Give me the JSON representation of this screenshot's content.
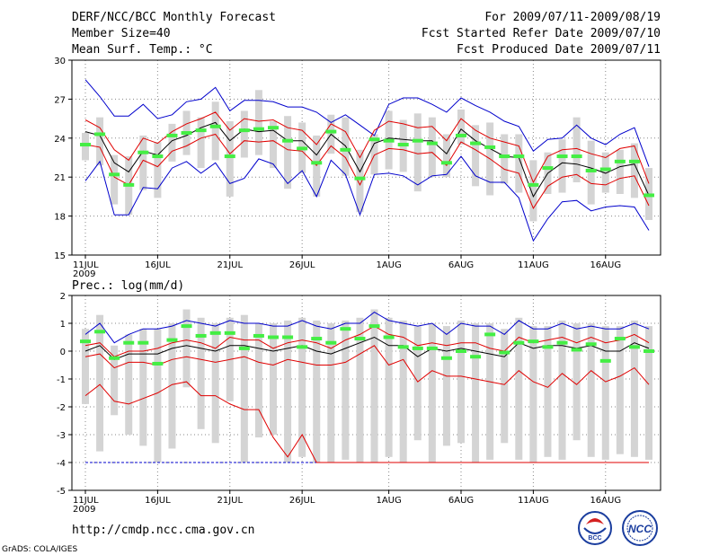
{
  "header": {
    "title": "DERF/NCC/BCC Monthly Forecast",
    "member_size": "Member Size=40",
    "variable1": "Mean Surf. Temp.: °C",
    "period": "For 2009/07/11-2009/08/19",
    "started": "Fcst Started Refer Date 2009/07/10",
    "produced": "Fcst Produced Date 2009/07/11"
  },
  "footer": {
    "url": "http://cmdp.ncc.cma.gov.cn",
    "grads": "GrADS: COLA/IGES",
    "logo_bcc": "BCC",
    "logo_ncc": "NCC"
  },
  "colors": {
    "box": "#d4d4d4",
    "mean": "#000000",
    "spread": "#e00000",
    "extreme": "#0000cc",
    "median": "#44ee44",
    "grid": "#888888"
  },
  "chart_data": [
    {
      "type": "line",
      "title": "Mean Surf. Temp.: °C",
      "xlabel": "",
      "ylabel": "°C",
      "xlim": [
        0,
        39
      ],
      "ylim": [
        15,
        30
      ],
      "yticks": [
        15,
        18,
        21,
        24,
        27,
        30
      ],
      "xticks": [
        {
          "i": 0,
          "label": "11JUL",
          "sub": "2009"
        },
        {
          "i": 5,
          "label": "16JUL"
        },
        {
          "i": 10,
          "label": "21JUL"
        },
        {
          "i": 15,
          "label": "26JUL"
        },
        {
          "i": 21,
          "label": "1AUG"
        },
        {
          "i": 26,
          "label": "6AUG"
        },
        {
          "i": 31,
          "label": "11AUG"
        },
        {
          "i": 36,
          "label": "16AUG"
        }
      ],
      "x_dates": [
        "07-11",
        "07-12",
        "07-13",
        "07-14",
        "07-15",
        "07-16",
        "07-17",
        "07-18",
        "07-19",
        "07-20",
        "07-21",
        "07-22",
        "07-23",
        "07-24",
        "07-25",
        "07-26",
        "07-27",
        "07-28",
        "07-29",
        "07-30",
        "07-31",
        "08-01",
        "08-02",
        "08-03",
        "08-04",
        "08-05",
        "08-06",
        "08-07",
        "08-08",
        "08-09",
        "08-10",
        "08-11",
        "08-12",
        "08-13",
        "08-14",
        "08-15",
        "08-16",
        "08-17",
        "08-18",
        "08-19"
      ],
      "series": [
        {
          "name": "max",
          "color": "blue",
          "values": [
            28.5,
            27.2,
            25.7,
            25.7,
            26.6,
            25.5,
            25.8,
            26.8,
            27.0,
            27.9,
            26.1,
            26.9,
            26.9,
            26.8,
            26.4,
            26.4,
            26.0,
            25.2,
            25.8,
            25.0,
            24.2,
            26.6,
            27.1,
            27.1,
            26.6,
            26.0,
            27.1,
            26.5,
            26.0,
            25.3,
            24.9,
            23.0,
            23.9,
            24.0,
            25.0,
            24.0,
            23.5,
            24.3,
            24.8,
            21.8
          ]
        },
        {
          "name": "upper",
          "color": "red",
          "values": [
            25.4,
            24.8,
            23.1,
            22.3,
            24.0,
            23.6,
            24.5,
            25.1,
            25.5,
            26.0,
            24.6,
            25.5,
            25.3,
            25.4,
            24.8,
            24.6,
            23.5,
            25.1,
            24.5,
            22.5,
            24.6,
            25.3,
            25.1,
            24.8,
            24.9,
            23.8,
            25.5,
            24.6,
            24.0,
            23.7,
            23.4,
            20.6,
            22.6,
            23.1,
            23.2,
            22.8,
            22.5,
            23.2,
            23.4,
            20.5
          ]
        },
        {
          "name": "mean",
          "color": "black",
          "values": [
            24.5,
            24.2,
            22.1,
            21.4,
            23.0,
            22.7,
            23.8,
            24.2,
            24.8,
            25.2,
            23.8,
            24.7,
            24.5,
            24.6,
            23.8,
            23.8,
            22.7,
            24.3,
            23.4,
            21.4,
            23.6,
            24.0,
            23.9,
            23.8,
            23.8,
            22.8,
            24.7,
            23.8,
            23.2,
            22.6,
            22.5,
            19.5,
            21.3,
            22.1,
            22.0,
            21.7,
            21.3,
            21.8,
            22.0,
            19.6
          ]
        },
        {
          "name": "lower",
          "color": "red",
          "values": [
            23.5,
            23.3,
            21.0,
            20.4,
            22.3,
            21.8,
            23.0,
            23.4,
            24.0,
            24.3,
            22.8,
            23.8,
            23.7,
            23.8,
            23.1,
            23.0,
            21.9,
            23.4,
            22.5,
            20.4,
            22.7,
            23.2,
            23.1,
            22.8,
            22.9,
            21.9,
            23.7,
            23.1,
            22.4,
            21.6,
            21.3,
            18.6,
            20.3,
            21.0,
            21.2,
            20.5,
            20.4,
            20.9,
            21.1,
            18.8
          ]
        },
        {
          "name": "min",
          "color": "blue",
          "values": [
            20.7,
            22.2,
            18.1,
            18.1,
            20.2,
            20.1,
            21.7,
            22.2,
            21.3,
            22.1,
            20.5,
            20.9,
            22.4,
            22.0,
            20.5,
            21.5,
            19.5,
            22.3,
            21.2,
            18.1,
            21.2,
            21.3,
            21.1,
            20.4,
            21.1,
            21.2,
            22.6,
            21.1,
            20.6,
            20.6,
            19.4,
            16.1,
            17.8,
            19.1,
            19.2,
            18.4,
            18.7,
            18.8,
            18.7,
            16.9
          ]
        },
        {
          "name": "box_top",
          "values": [
            24.4,
            25.6,
            22.7,
            22.6,
            24.2,
            23.7,
            25.1,
            26.1,
            25.6,
            26.8,
            25.3,
            26.1,
            27.7,
            25.3,
            25.7,
            25.2,
            24.2,
            25.8,
            25.6,
            23.1,
            24.3,
            26.1,
            25.4,
            25.9,
            25.6,
            24.3,
            26.2,
            25.0,
            25.2,
            24.3,
            24.3,
            22.3,
            22.9,
            23.9,
            25.6,
            23.8,
            22.9,
            23.1,
            23.6,
            21.7
          ]
        },
        {
          "name": "box_bottom",
          "values": [
            22.3,
            21.9,
            18.9,
            18.1,
            20.0,
            19.4,
            22.2,
            22.7,
            21.7,
            22.3,
            19.5,
            22.5,
            22.7,
            21.7,
            20.1,
            21.3,
            19.5,
            22.8,
            21.1,
            18.3,
            21.2,
            21.6,
            21.4,
            19.9,
            21.0,
            21.0,
            23.5,
            20.3,
            19.6,
            20.5,
            19.8,
            17.6,
            19.7,
            19.8,
            20.6,
            18.9,
            19.8,
            19.7,
            19.4,
            17.7
          ]
        },
        {
          "name": "median",
          "color": "green",
          "values": [
            23.5,
            24.3,
            21.2,
            20.4,
            22.9,
            22.6,
            24.2,
            24.4,
            24.6,
            24.9,
            22.6,
            24.6,
            24.7,
            24.8,
            23.8,
            23.2,
            22.1,
            24.5,
            23.1,
            20.9,
            23.9,
            23.8,
            23.5,
            23.8,
            23.6,
            22.1,
            24.2,
            23.6,
            23.3,
            22.6,
            22.6,
            20.4,
            21.7,
            22.6,
            22.6,
            21.5,
            21.6,
            22.2,
            22.2,
            19.6
          ]
        }
      ]
    },
    {
      "type": "line",
      "title": "Prec.: log(mm/d)",
      "xlabel": "",
      "ylabel": "log(mm/d)",
      "xlim": [
        0,
        39
      ],
      "ylim": [
        -5,
        2
      ],
      "yticks": [
        -5,
        -4,
        -3,
        -2,
        -1,
        0,
        1,
        2
      ],
      "xticks": [
        {
          "i": 0,
          "label": "11JUL",
          "sub": "2009"
        },
        {
          "i": 5,
          "label": "16JUL"
        },
        {
          "i": 10,
          "label": "21JUL"
        },
        {
          "i": 15,
          "label": "26JUL"
        },
        {
          "i": 21,
          "label": "1AUG"
        },
        {
          "i": 26,
          "label": "6AUG"
        },
        {
          "i": 31,
          "label": "11AUG"
        },
        {
          "i": 36,
          "label": "16AUG"
        }
      ],
      "series": [
        {
          "name": "max",
          "color": "blue",
          "values": [
            0.6,
            1.0,
            0.3,
            0.6,
            0.8,
            0.8,
            0.9,
            1.1,
            1.0,
            0.9,
            1.1,
            1.0,
            1.0,
            0.9,
            0.9,
            1.1,
            0.9,
            0.8,
            1.0,
            1.0,
            1.4,
            1.1,
            1.0,
            0.9,
            1.0,
            0.6,
            1.0,
            0.9,
            0.9,
            0.6,
            1.1,
            0.8,
            0.8,
            1.0,
            0.8,
            0.9,
            0.8,
            0.8,
            1.0,
            0.8
          ]
        },
        {
          "name": "upper",
          "color": "red",
          "values": [
            0.2,
            0.3,
            -0.2,
            0.0,
            0.0,
            0.1,
            0.3,
            0.4,
            0.3,
            0.1,
            0.5,
            0.4,
            0.4,
            0.1,
            0.3,
            0.4,
            0.3,
            0.1,
            0.4,
            0.6,
            0.9,
            0.6,
            0.5,
            0.2,
            0.3,
            0.2,
            0.3,
            0.3,
            0.1,
            0.0,
            0.5,
            0.3,
            0.4,
            0.5,
            0.3,
            0.5,
            0.3,
            0.4,
            0.6,
            0.3
          ]
        },
        {
          "name": "mean",
          "color": "black",
          "values": [
            0.0,
            0.2,
            -0.3,
            -0.1,
            -0.1,
            -0.1,
            0.1,
            0.2,
            0.1,
            0.0,
            0.2,
            0.2,
            0.1,
            0.0,
            0.1,
            0.2,
            0.0,
            -0.1,
            0.1,
            0.3,
            0.5,
            0.2,
            0.2,
            -0.2,
            0.1,
            0.0,
            0.1,
            0.0,
            -0.1,
            -0.2,
            0.3,
            0.1,
            0.2,
            0.2,
            0.1,
            0.2,
            0.0,
            0.0,
            0.3,
            0.1
          ]
        },
        {
          "name": "lower",
          "color": "red",
          "values": [
            -0.2,
            -0.1,
            -0.6,
            -0.4,
            -0.4,
            -0.5,
            -0.3,
            -0.2,
            -0.3,
            -0.4,
            -0.3,
            -0.2,
            -0.4,
            -0.5,
            -0.3,
            -0.4,
            -0.5,
            -0.5,
            -0.4,
            -0.1,
            0.2,
            -0.5,
            -0.3,
            -1.1,
            -0.7,
            -0.9,
            -0.9,
            -1.0,
            -1.1,
            -1.2,
            -0.7,
            -1.1,
            -1.3,
            -0.8,
            -1.2,
            -0.7,
            -1.1,
            -0.9,
            -0.6,
            -1.2
          ]
        },
        {
          "name": "min",
          "color": "red",
          "values": [
            -1.6,
            -1.2,
            -1.8,
            -1.9,
            -1.7,
            -1.5,
            -1.2,
            -1.1,
            -1.6,
            -1.6,
            -1.9,
            -2.1,
            -2.1,
            -3.1,
            -3.8,
            -3.0,
            -4.0,
            -4.0,
            -4.0,
            -4.0,
            -4.0,
            -4.0,
            -4.0,
            -4.0,
            -4.0,
            -4.0,
            -4.0,
            -4.0,
            -4.0,
            -4.0,
            -4.0,
            -4.0,
            -4.0,
            -4.0,
            -4.0,
            -4.0,
            -4.0,
            -4.0,
            -4.0,
            -4.0
          ]
        },
        {
          "name": "box_top",
          "values": [
            0.8,
            1.3,
            0.2,
            0.6,
            0.8,
            0.8,
            1.0,
            1.5,
            1.2,
            1.0,
            1.2,
            1.3,
            1.0,
            1.0,
            1.1,
            1.2,
            1.1,
            1.0,
            1.1,
            1.2,
            1.5,
            1.2,
            1.1,
            0.9,
            1.0,
            0.9,
            1.1,
            1.0,
            1.0,
            0.8,
            1.2,
            0.9,
            0.9,
            1.1,
            1.0,
            1.0,
            0.9,
            0.9,
            1.1,
            0.9
          ]
        },
        {
          "name": "box_bottom",
          "values": [
            -1.9,
            -3.6,
            -2.3,
            -3.0,
            -3.4,
            -4.0,
            -3.5,
            -1.3,
            -2.8,
            -3.3,
            -1.8,
            -4.0,
            -3.1,
            -3.0,
            -4.0,
            -3.8,
            -4.0,
            -4.0,
            -3.9,
            -4.0,
            -4.0,
            -3.8,
            -4.0,
            -3.2,
            -4.0,
            -3.4,
            -3.3,
            -4.0,
            -3.9,
            -3.3,
            -3.9,
            -4.0,
            -3.8,
            -3.9,
            -3.2,
            -3.8,
            -3.9,
            -3.7,
            -3.8,
            -3.9
          ]
        },
        {
          "name": "median",
          "color": "green",
          "values": [
            0.35,
            0.7,
            -0.25,
            0.3,
            0.3,
            -0.45,
            0.4,
            0.9,
            0.55,
            0.65,
            0.65,
            0.1,
            0.55,
            0.5,
            0.5,
            0.15,
            0.45,
            0.3,
            0.8,
            0.45,
            0.9,
            0.5,
            0.15,
            0.1,
            0.1,
            -0.25,
            0.0,
            -0.2,
            0.6,
            -0.05,
            0.3,
            0.35,
            0.15,
            0.3,
            0.05,
            0.25,
            -0.35,
            0.45,
            0.15,
            0.0
          ]
        }
      ]
    }
  ]
}
